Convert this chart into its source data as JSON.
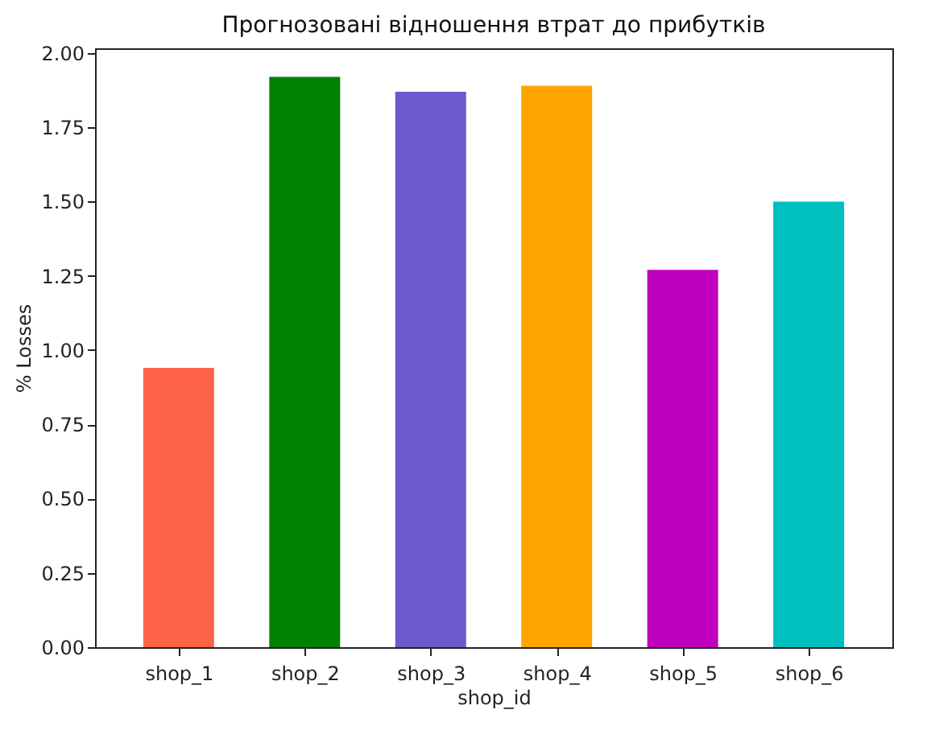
{
  "chart_data": {
    "type": "bar",
    "title": "Прогнозовані відношення втрат до прибутків",
    "xlabel": "shop_id",
    "ylabel": "% Losses",
    "categories": [
      "shop_1",
      "shop_2",
      "shop_3",
      "shop_4",
      "shop_5",
      "shop_6"
    ],
    "values": [
      0.94,
      1.92,
      1.87,
      1.89,
      1.27,
      1.5
    ],
    "colors": [
      "#ff6347",
      "#008000",
      "#6a5acd",
      "#ffa500",
      "#bf00bf",
      "#00bfbf"
    ],
    "ylim": [
      0,
      2.016
    ],
    "yticks": [
      {
        "value": 0,
        "label": "0.00"
      },
      {
        "value": 0.25,
        "label": "0.25"
      },
      {
        "value": 0.5,
        "label": "0.50"
      },
      {
        "value": 0.75,
        "label": "0.75"
      },
      {
        "value": 1,
        "label": "1.00"
      },
      {
        "value": 1.25,
        "label": "1.25"
      },
      {
        "value": 1.5,
        "label": "1.50"
      },
      {
        "value": 1.75,
        "label": "1.75"
      },
      {
        "value": 2,
        "label": "2.00"
      }
    ],
    "grid": false
  }
}
